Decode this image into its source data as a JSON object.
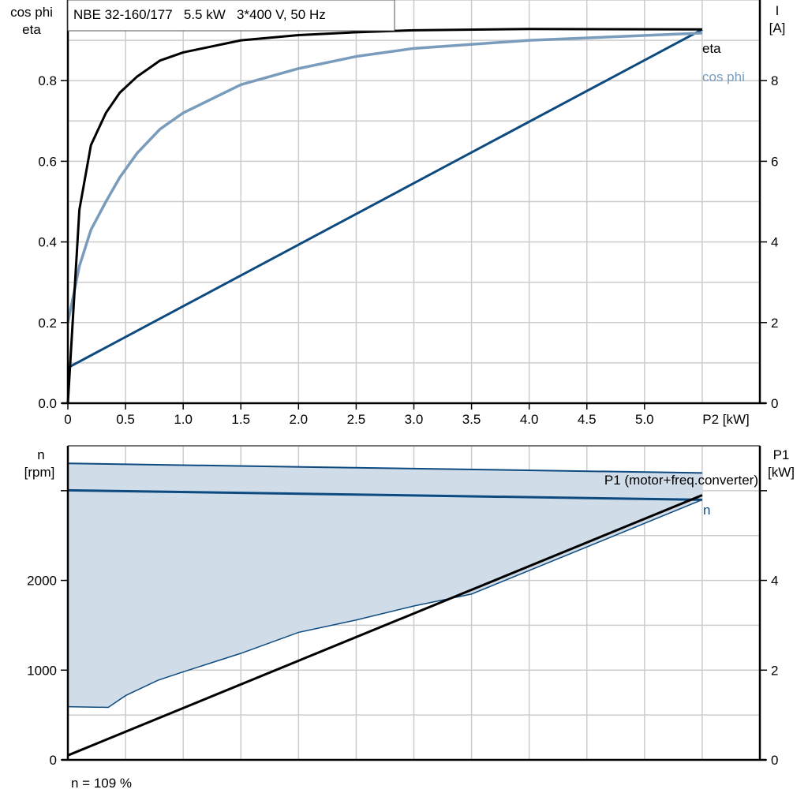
{
  "colors": {
    "eta": "#000000",
    "cos_phi": "#7a9cbc",
    "current": "#0d4a80",
    "speed": "#0d4a80",
    "speed_band_fill": "#d0dce7",
    "p1": "#000000",
    "grid": "#cccccc"
  },
  "chart_data": [
    {
      "type": "line",
      "title": "NBE 32-160/177   5.5 kW   3*400 V, 50 Hz",
      "xlabel": "P2 [kW]",
      "ylabel_left": [
        "cos phi",
        "eta"
      ],
      "ylabel_right": [
        "I",
        "[A]"
      ],
      "xlim": [
        0,
        6
      ],
      "ylim_left": [
        0,
        1.0
      ],
      "ylim_right": [
        0,
        10
      ],
      "x_ticks": [
        0,
        0.5,
        1.0,
        1.5,
        2.0,
        2.5,
        3.0,
        3.5,
        4.0,
        4.5,
        5.0
      ],
      "x_tick_labels": [
        "0",
        "0.5",
        "1.0",
        "1.5",
        "2.0",
        "2.5",
        "3.0",
        "3.5",
        "4.0",
        "4.5",
        "5.0"
      ],
      "y_left_ticks": [
        0,
        0.2,
        0.4,
        0.6,
        0.8
      ],
      "y_left_tick_labels": [
        "0.0",
        "0.2",
        "0.4",
        "0.6",
        "0.8"
      ],
      "y_right_ticks": [
        0,
        2,
        4,
        6,
        8
      ],
      "y_right_tick_labels": [
        "0",
        "2",
        "4",
        "6",
        "8"
      ],
      "grid": true,
      "series": [
        {
          "name": "eta",
          "axis": "left",
          "points": [
            [
              0,
              0
            ],
            [
              0.1,
              0.48
            ],
            [
              0.2,
              0.64
            ],
            [
              0.33,
              0.72
            ],
            [
              0.45,
              0.77
            ],
            [
              0.6,
              0.81
            ],
            [
              0.8,
              0.85
            ],
            [
              1.0,
              0.87
            ],
            [
              1.5,
              0.9
            ],
            [
              2.0,
              0.913
            ],
            [
              2.5,
              0.92
            ],
            [
              3.0,
              0.925
            ],
            [
              4.0,
              0.928
            ],
            [
              5.5,
              0.927
            ]
          ]
        },
        {
          "name": "cos phi",
          "axis": "left",
          "points": [
            [
              0,
              0.2
            ],
            [
              0.1,
              0.34
            ],
            [
              0.2,
              0.43
            ],
            [
              0.33,
              0.5
            ],
            [
              0.45,
              0.56
            ],
            [
              0.6,
              0.62
            ],
            [
              0.8,
              0.68
            ],
            [
              1.0,
              0.72
            ],
            [
              1.5,
              0.79
            ],
            [
              2.0,
              0.83
            ],
            [
              2.5,
              0.86
            ],
            [
              3.0,
              0.88
            ],
            [
              4.0,
              0.9
            ],
            [
              5.5,
              0.918
            ]
          ]
        },
        {
          "name": "",
          "axis": "right",
          "points": [
            [
              0,
              0.88
            ],
            [
              5.5,
              9.27
            ]
          ]
        }
      ]
    },
    {
      "type": "line",
      "ylabel_left": [
        "n",
        "[rpm]"
      ],
      "ylabel_right": [
        "P1",
        "[kW]"
      ],
      "xlim": [
        0,
        6
      ],
      "ylim_left": [
        0,
        3500
      ],
      "ylim_right": [
        0,
        7
      ],
      "y_left_ticks": [
        0,
        1000,
        2000,
        3000
      ],
      "y_left_tick_labels": [
        "0",
        "1000",
        "2000",
        ""
      ],
      "y_right_ticks": [
        0,
        2,
        4,
        6
      ],
      "y_right_tick_labels": [
        "0",
        "2",
        "4",
        ""
      ],
      "grid": true,
      "speed_band_upper": [
        [
          0,
          3304
        ],
        [
          5.5,
          3198
        ]
      ],
      "speed_band_lower": [
        [
          0,
          593
        ],
        [
          0.35,
          585
        ],
        [
          0.5,
          716
        ],
        [
          0.78,
          887
        ],
        [
          1.0,
          981
        ],
        [
          1.5,
          1187
        ],
        [
          2.0,
          1421
        ],
        [
          2.5,
          1559
        ],
        [
          3.0,
          1715
        ],
        [
          3.5,
          1848
        ],
        [
          3.6,
          1900
        ],
        [
          5.5,
          2899
        ]
      ],
      "series": [
        {
          "name": "n",
          "axis": "left",
          "points": [
            [
              0,
              3004
            ],
            [
              5.5,
              2899
            ]
          ]
        },
        {
          "name": "P1 (motor+freq.converter)",
          "axis": "right",
          "points": [
            [
              0,
              0.1
            ],
            [
              5.5,
              5.9
            ]
          ]
        }
      ],
      "annotation": "n = 109 %"
    }
  ]
}
